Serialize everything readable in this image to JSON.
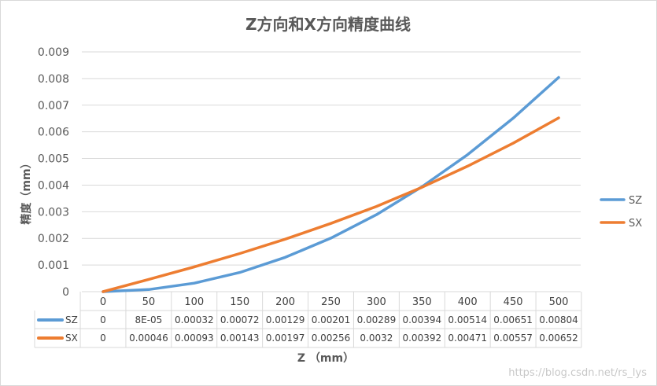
{
  "chart_data": {
    "type": "line",
    "title": "Z方向和X方向精度曲线",
    "xlabel": "Z （mm）",
    "ylabel": "精度（mm）",
    "categories": [
      "0",
      "50",
      "100",
      "150",
      "200",
      "250",
      "300",
      "350",
      "400",
      "450",
      "500"
    ],
    "ylim": [
      0,
      0.009
    ],
    "yticks": [
      "0",
      "0.001",
      "0.002",
      "0.003",
      "0.004",
      "0.005",
      "0.006",
      "0.007",
      "0.008",
      "0.009"
    ],
    "grid": true,
    "legend_position": "right",
    "series": [
      {
        "name": "SZ",
        "color": "#5b9bd5",
        "values": [
          0,
          8e-05,
          0.00032,
          0.00072,
          0.00129,
          0.00201,
          0.00289,
          0.00394,
          0.00514,
          0.00651,
          0.00804
        ],
        "labels": [
          "0",
          "8E-05",
          "0.00032",
          "0.00072",
          "0.00129",
          "0.00201",
          "0.00289",
          "0.00394",
          "0.00514",
          "0.00651",
          "0.00804"
        ]
      },
      {
        "name": "SX",
        "color": "#ed7d31",
        "values": [
          0,
          0.00046,
          0.00093,
          0.00143,
          0.00197,
          0.00256,
          0.0032,
          0.00392,
          0.00471,
          0.00557,
          0.00652
        ],
        "labels": [
          "0",
          "0.00046",
          "0.00093",
          "0.00143",
          "0.00197",
          "0.00256",
          "0.0032",
          "0.00392",
          "0.00471",
          "0.00557",
          "0.00652"
        ]
      }
    ]
  },
  "watermark": "https://blog.csdn.net/rs_lys"
}
